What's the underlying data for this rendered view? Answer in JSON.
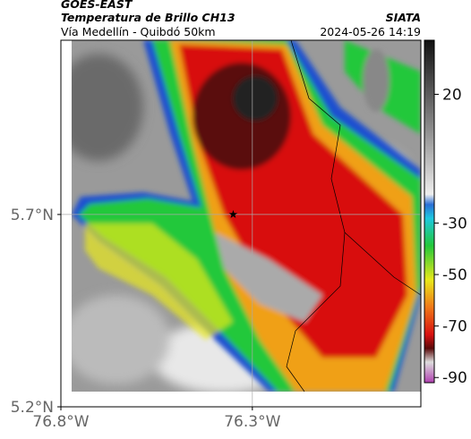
{
  "header": {
    "source": "GOES-EAST",
    "title": "Temperatura de Brillo CH13",
    "subtitle": "Vía Medellín - Quibdó 50km",
    "organization": "SIATA",
    "datetime": "2024-05-26 14:19"
  },
  "map": {
    "xlim": [
      -76.8,
      -75.86
    ],
    "ylim": [
      5.2,
      6.153
    ],
    "xticks": [
      {
        "value": -76.8,
        "label": "76.8°W"
      },
      {
        "value": -76.3,
        "label": "76.3°W"
      }
    ],
    "yticks": [
      {
        "value": 5.7,
        "label": "5.7°N"
      },
      {
        "value": 5.2,
        "label": "5.2°N"
      }
    ],
    "marker": {
      "lon": -76.35,
      "lat": 5.7
    }
  },
  "colorbar": {
    "lim": [
      -92,
      41
    ],
    "ticks": [
      20,
      -30,
      -50,
      -70,
      -90
    ]
  }
}
